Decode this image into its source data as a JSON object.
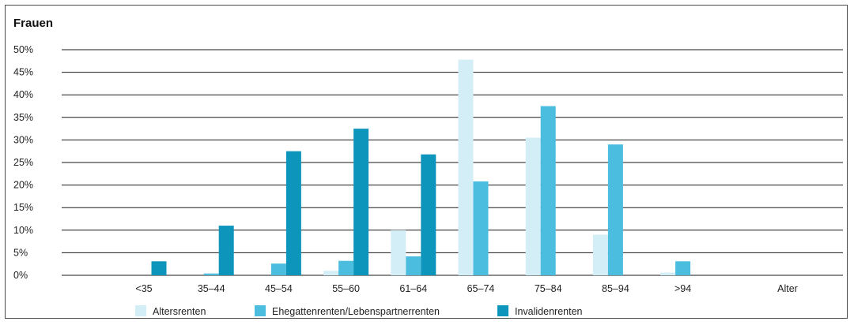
{
  "colors": {
    "Altersrenten": "#d4eef8",
    "Ehegattenrenten/Lebenspartnerrenten": "#4bbddf",
    "Invalidenrenten": "#0e95bb",
    "gridline": "#1a1a1a"
  },
  "chart_data": {
    "type": "bar",
    "title": "Frauen",
    "xlabel": "Alter",
    "ylabel": "",
    "ylim": [
      0,
      50
    ],
    "y_ticks": [
      "0%",
      "5%",
      "10%",
      "15%",
      "20%",
      "25%",
      "30%",
      "35%",
      "40%",
      "45%",
      "50%"
    ],
    "categories": [
      "<35",
      "35–44",
      "45–54",
      "55–60",
      "61–64",
      "65–74",
      "75–84",
      "85–94",
      ">94"
    ],
    "series": [
      {
        "name": "Altersrenten",
        "values": [
          0,
          0,
          0,
          1.0,
          10.0,
          47.8,
          30.5,
          9.0,
          0.6
        ]
      },
      {
        "name": "Ehegattenrenten/Lebenspartnerrenten",
        "values": [
          0,
          0.4,
          2.6,
          3.2,
          4.2,
          20.8,
          37.5,
          29.0,
          3.1
        ]
      },
      {
        "name": "Invalidenrenten",
        "values": [
          3.1,
          11.0,
          27.5,
          32.5,
          26.8,
          0,
          0,
          0,
          0
        ]
      }
    ],
    "legend": [
      "Altersrenten",
      "Ehegattenrenten/Lebenspartnerrenten",
      "Invalidenrenten"
    ],
    "legend_position": "bottom",
    "grid": true
  }
}
